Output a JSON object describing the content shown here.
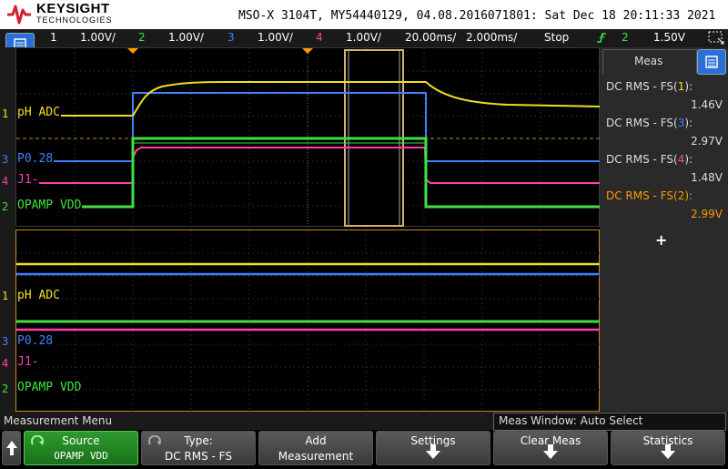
{
  "header": {
    "brand": "KEYSIGHT",
    "brand_sub": "TECHNOLOGIES",
    "info": "MSO-X 3104T, MY54440129, 04.08.2016071801: Sat Dec 18 20:11:33 2021"
  },
  "channel_bar": {
    "channels": [
      {
        "num": "1",
        "scale": "1.00V/",
        "color": "#f0e020"
      },
      {
        "num": "2",
        "scale": "1.00V/",
        "color": "#40e040"
      },
      {
        "num": "3",
        "scale": "1.00V/",
        "color": "#4080ff"
      },
      {
        "num": "4",
        "scale": "1.00V/",
        "color": "#ff40b0"
      }
    ],
    "timebase": "20.00ms/",
    "delay": "2.000ms/",
    "run_state": "Stop",
    "trigger_channel": "2",
    "trigger_level": "1.50V"
  },
  "labels": {
    "ch1": "pH ADC",
    "ch3": "P0.28",
    "ch4": "J1-",
    "ch2": "OPAMP VDD",
    "ch1_num": "1",
    "ch2_num": "2",
    "ch3_num": "3",
    "ch4_num": "4"
  },
  "meas_panel": {
    "tab_label": "Meas",
    "add_symbol": "+",
    "items": [
      {
        "prefix": "DC RMS - FS(",
        "ch": "1",
        "suffix": ")",
        "value": "1.46V",
        "color": "#dddddd",
        "ch_color": "#f0e020"
      },
      {
        "prefix": "DC RMS - FS(",
        "ch": "3",
        "suffix": ")",
        "value": "2.97V",
        "color": "#dddddd",
        "ch_color": "#4080ff"
      },
      {
        "prefix": "DC RMS - FS(",
        "ch": "4",
        "suffix": ")",
        "value": "1.48V",
        "color": "#dddddd",
        "ch_color": "#ff40b0"
      },
      {
        "prefix": "DC RMS - FS(",
        "ch": "2",
        "suffix": ")",
        "value": "2.99V",
        "color": "#ff9900",
        "ch_color": "#ff9900"
      }
    ]
  },
  "menu": {
    "title": "Measurement Menu",
    "meas_window": "Meas Window: Auto Select"
  },
  "softkeys": {
    "source_label": "Source",
    "source_value": "OPAMP VDD",
    "type_label": "Type:",
    "type_value": "DC RMS - FS",
    "add_l1": "Add",
    "add_l2": "Measurement",
    "settings": "Settings",
    "clear": "Clear Meas",
    "statistics": "Statistics"
  },
  "colors": {
    "ch1": "#f0e020",
    "ch2": "#40e040",
    "ch3": "#4080ff",
    "ch4": "#ff40b0"
  }
}
